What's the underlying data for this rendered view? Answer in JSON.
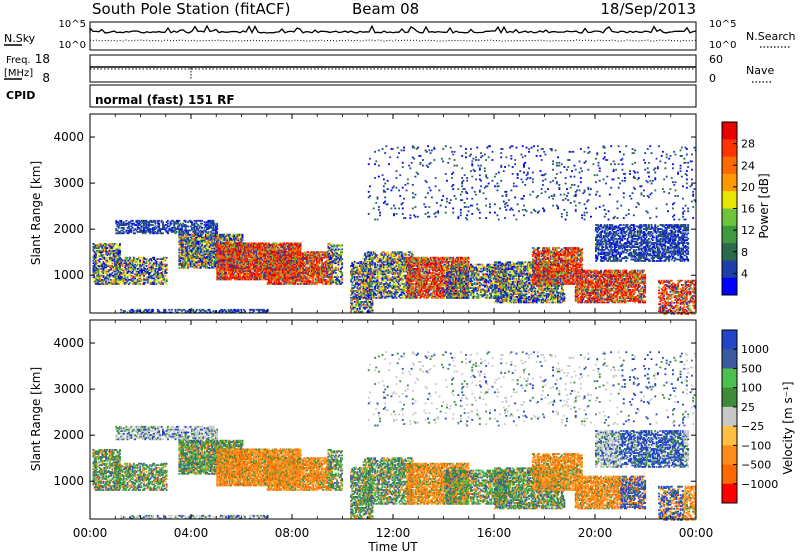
{
  "header": {
    "station": "South Pole Station (fitACF)",
    "beam": "Beam 08",
    "date": "18/Sep/2013"
  },
  "colors": {
    "power_scale": [
      "#0000ff",
      "#1e3fa8",
      "#2c6b4a",
      "#3f9a3f",
      "#6fc43a",
      "#e6e600",
      "#ff9900",
      "#ff6a00",
      "#ff3300",
      "#e60000"
    ],
    "velocity_scale": [
      "#ff0000",
      "#ff6a00",
      "#ff8c1a",
      "#ffbf40",
      "#c8c8c8",
      "#3c8c3c",
      "#4cc04c",
      "#3c5aa0",
      "#2346c8"
    ],
    "ground_scatter": "#a0a0a0"
  },
  "chart_data": [
    {
      "name": "nsky-nsearch-strip",
      "type": "line",
      "left_label": "N.Sky",
      "right_label": "N.Search",
      "left_ticks": [
        "10^5",
        "10^0"
      ],
      "right_ticks": [
        "10^5",
        "10^0"
      ]
    },
    {
      "name": "freq-nave-strip",
      "type": "line",
      "left_label": "Freq.",
      "left_unit": "[MHz]",
      "right_label": "Nave",
      "left_ticks": [
        "18",
        "8"
      ],
      "right_ticks": [
        "60",
        "0"
      ],
      "ylim": [
        8,
        18
      ]
    },
    {
      "name": "cpid-strip",
      "type": "table",
      "label": "CPID",
      "value": "normal (fast) 151 RF"
    },
    {
      "name": "power-panel",
      "type": "heatmap",
      "ylabel": "Slant Range [km]",
      "ylim": [
        180,
        4500
      ],
      "y_ticks": [
        1000,
        2000,
        3000,
        4000
      ],
      "xlim_hours": [
        0,
        24
      ],
      "colorbar": {
        "label": "Power [dB]",
        "ticks": [
          4,
          8,
          12,
          16,
          20,
          24,
          28
        ],
        "range": [
          0,
          32
        ]
      }
    },
    {
      "name": "velocity-panel",
      "type": "heatmap",
      "xlabel": "Time UT",
      "ylabel": "Slant Range [km]",
      "x_ticks": [
        "00:00",
        "04:00",
        "08:00",
        "12:00",
        "16:00",
        "20:00",
        "00:00"
      ],
      "ylim": [
        180,
        4500
      ],
      "y_ticks": [
        1000,
        2000,
        3000,
        4000
      ],
      "colorbar": {
        "label": "Velocity [m s⁻¹]",
        "ticks": [
          "1000",
          "500",
          "100",
          "25",
          "−25",
          "−100",
          "−500",
          "−1000"
        ]
      }
    }
  ]
}
